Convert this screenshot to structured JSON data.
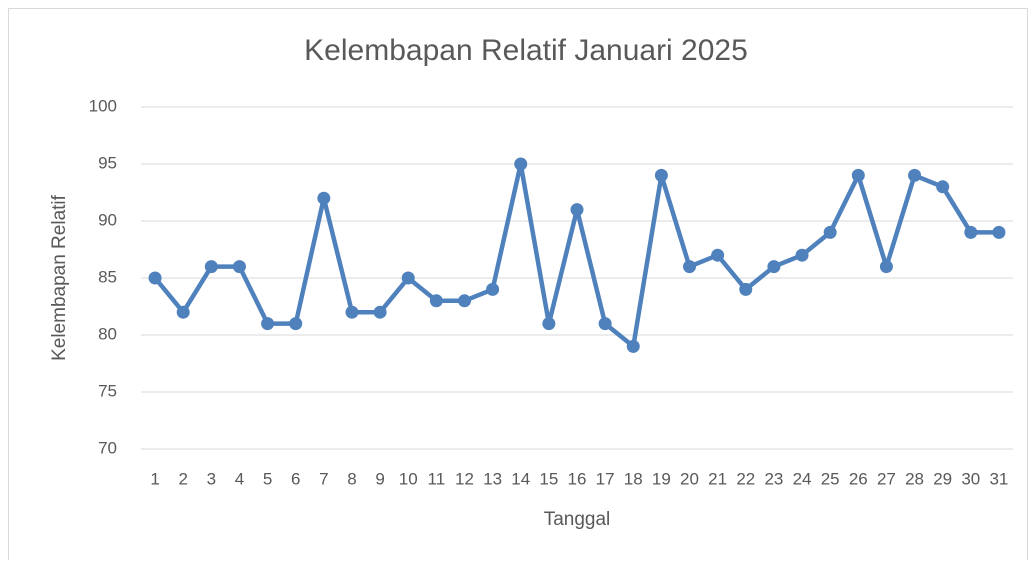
{
  "chart_data": {
    "type": "line",
    "title": "Kelembapan Relatif Januari 2025",
    "x_label": "Tanggal",
    "y_label": "Kelembapan Relatif",
    "categories": [
      "1",
      "2",
      "3",
      "4",
      "5",
      "6",
      "7",
      "8",
      "9",
      "10",
      "11",
      "12",
      "13",
      "14",
      "15",
      "16",
      "17",
      "18",
      "19",
      "20",
      "21",
      "22",
      "23",
      "24",
      "25",
      "26",
      "27",
      "28",
      "29",
      "30",
      "31"
    ],
    "values": [
      85,
      82,
      86,
      86,
      81,
      81,
      92,
      82,
      82,
      85,
      83,
      83,
      84,
      95,
      81,
      91,
      81,
      79,
      94,
      86,
      87,
      84,
      86,
      87,
      89,
      94,
      86,
      94,
      93,
      89,
      89
    ],
    "color": "#4f81bd",
    "ylim": [
      70,
      100
    ],
    "yticks": [
      70,
      75,
      80,
      85,
      90,
      95,
      100
    ],
    "grid": true
  }
}
